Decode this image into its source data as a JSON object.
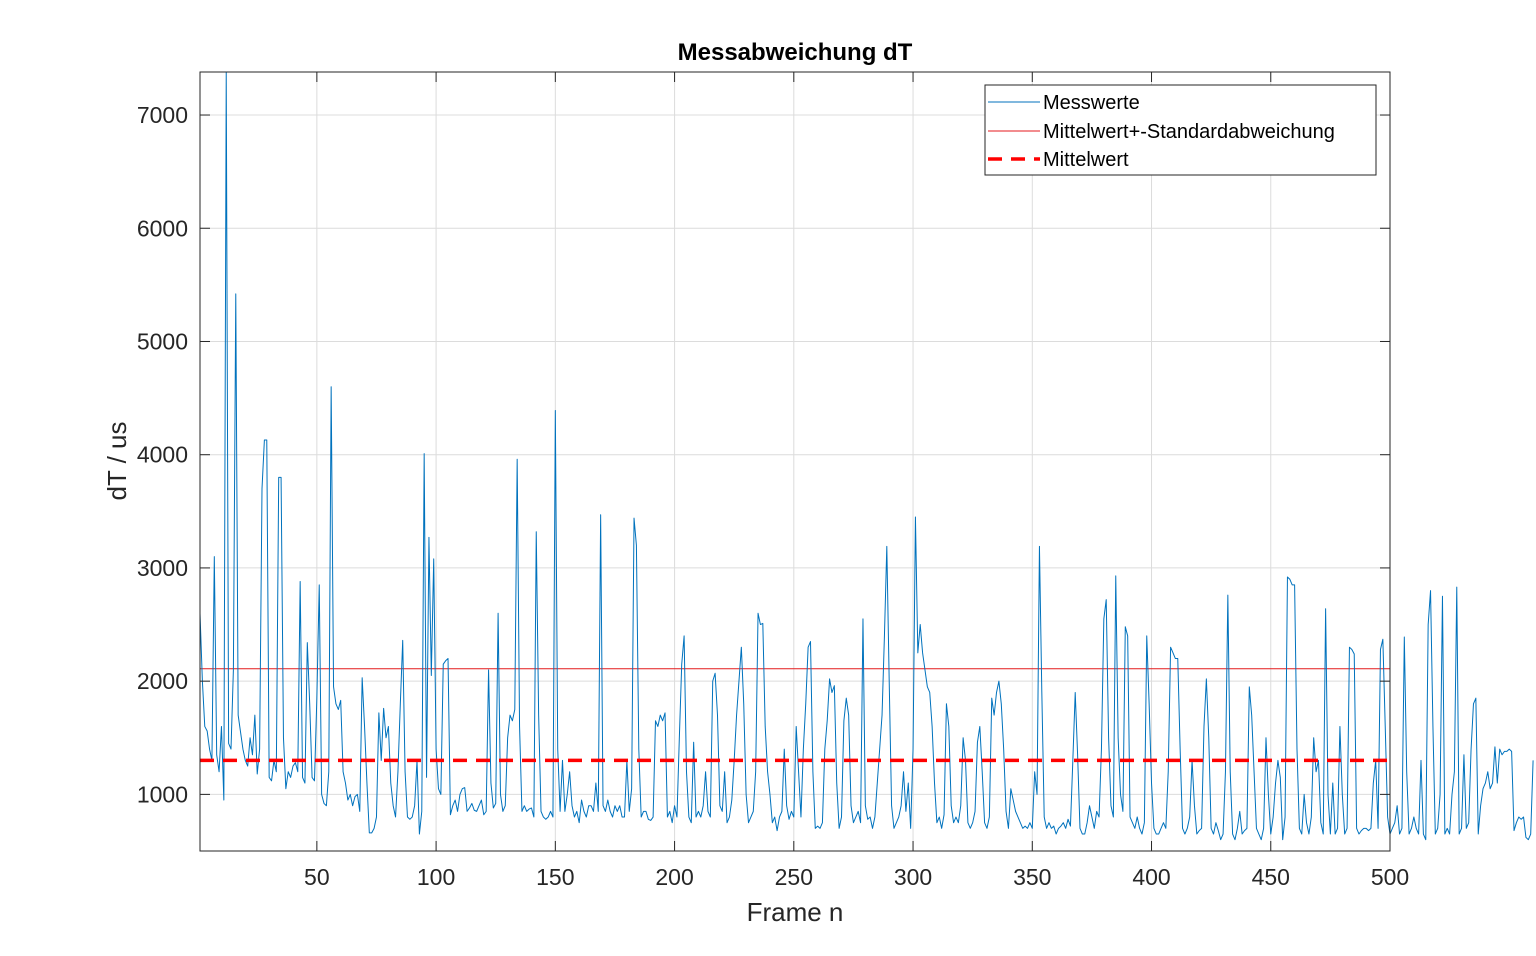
{
  "chart_data": {
    "type": "line",
    "title": "Messabweichung dT",
    "xlabel": "Frame n",
    "ylabel": "dT / us",
    "xlim": [
      1,
      500
    ],
    "ylim": [
      500,
      7380
    ],
    "xticks": [
      50,
      100,
      150,
      200,
      250,
      300,
      350,
      400,
      450,
      500
    ],
    "yticks": [
      1000,
      2000,
      3000,
      4000,
      5000,
      6000,
      7000
    ],
    "grid": true,
    "legend_position": "top-right",
    "colors": {
      "measured": "#0072BD",
      "band": "#E41A1C",
      "mean": "#FF0000",
      "grid": "#dcdcdc"
    },
    "legend": [
      {
        "key": "measured",
        "label": "Messwerte",
        "style": "solid-thin"
      },
      {
        "key": "band",
        "label": "Mittelwert+-Standardabweichung",
        "style": "solid-thin"
      },
      {
        "key": "mean",
        "label": "Mittelwert",
        "style": "dashed-thick"
      }
    ],
    "series": [
      {
        "name": "Messwerte",
        "x_start": 1,
        "x_step": 1,
        "values": [
          2600,
          2000,
          1600,
          1560,
          1400,
          1300,
          3100,
          1350,
          1200,
          1600,
          950,
          7380,
          1450,
          1400,
          2100,
          5420,
          1700,
          1550,
          1400,
          1300,
          1250,
          1500,
          1350,
          1700,
          1180,
          1400,
          3700,
          4130,
          4130,
          1150,
          1120,
          1300,
          1200,
          3800,
          3800,
          1500,
          1050,
          1200,
          1150,
          1250,
          1280,
          1200,
          2880,
          1150,
          1100,
          2340,
          1800,
          1150,
          1120,
          1850,
          2850,
          1000,
          920,
          900,
          1200,
          4600,
          1950,
          1800,
          1750,
          1830,
          1200,
          1100,
          950,
          1000,
          900,
          980,
          1000,
          850,
          2030,
          1600,
          1100,
          660,
          660,
          700,
          800,
          1720,
          1300,
          1760,
          1500,
          1600,
          1100,
          900,
          800,
          1200,
          1800,
          2360,
          1200,
          800,
          780,
          800,
          900,
          1300,
          650,
          850,
          4010,
          1150,
          3270,
          2050,
          3080,
          1400,
          1050,
          1000,
          2150,
          2180,
          2200,
          820,
          900,
          950,
          850,
          1000,
          1050,
          1060,
          850,
          880,
          920,
          860,
          850,
          900,
          950,
          820,
          850,
          2100,
          1100,
          880,
          920,
          2600,
          1000,
          850,
          900,
          1500,
          1700,
          1650,
          1750,
          3960,
          1600,
          850,
          900,
          850,
          870,
          880,
          800,
          3320,
          1700,
          850,
          800,
          780,
          800,
          850,
          800,
          4390,
          1400,
          850,
          1300,
          850,
          1000,
          1200,
          900,
          800,
          850,
          750,
          950,
          850,
          800,
          900,
          900,
          850,
          1100,
          850,
          3470,
          900,
          850,
          950,
          850,
          800,
          900,
          850,
          900,
          800,
          800,
          1300,
          850,
          1050,
          3440,
          3200,
          1400,
          800,
          850,
          850,
          780,
          770,
          800,
          1650,
          1600,
          1700,
          1650,
          1720,
          800,
          850,
          750,
          900,
          800,
          1500,
          2150,
          2400,
          1200,
          800,
          750,
          1460,
          800,
          850,
          800,
          900,
          1200,
          850,
          800,
          2000,
          2070,
          1700,
          900,
          850,
          1200,
          750,
          800,
          950,
          1300,
          1700,
          2000,
          2300,
          1800,
          1000,
          750,
          800,
          850,
          1200,
          2600,
          2500,
          2510,
          1600,
          1200,
          1000,
          750,
          800,
          680,
          800,
          850,
          1400,
          900,
          780,
          850,
          800,
          1600,
          1200,
          800,
          1400,
          1800,
          2300,
          2350,
          1200,
          700,
          720,
          700,
          750,
          1400,
          1650,
          2020,
          1900,
          1960,
          1100,
          700,
          800,
          1650,
          1850,
          1700,
          900,
          750,
          800,
          850,
          750,
          2550,
          900,
          780,
          800,
          700,
          800,
          1100,
          1400,
          1700,
          2400,
          3190,
          2000,
          900,
          700,
          750,
          800,
          900,
          1200,
          850,
          1100,
          700,
          1400,
          3450,
          2250,
          2500,
          2250,
          2100,
          1950,
          1900,
          1600,
          1100,
          750,
          800,
          700,
          820,
          1800,
          1600,
          900,
          750,
          800,
          750,
          900,
          1500,
          1300,
          750,
          700,
          750,
          850,
          1460,
          1600,
          1200,
          750,
          700,
          800,
          1850,
          1700,
          1900,
          2000,
          1800,
          1400,
          850,
          700,
          1050,
          950,
          850,
          800,
          750,
          700,
          720,
          700,
          750,
          700,
          1200,
          1000,
          3190,
          1900,
          800,
          700,
          750,
          700,
          720,
          650,
          700,
          720,
          750,
          700,
          780,
          720,
          1300,
          1900,
          1350,
          700,
          650,
          650,
          750,
          900,
          800,
          700,
          850,
          800,
          1400,
          2550,
          2720,
          1500,
          900,
          800,
          2930,
          1500,
          1000,
          850,
          2480,
          2400,
          800,
          750,
          700,
          800,
          700,
          650,
          750,
          2400,
          1800,
          1100,
          700,
          650,
          650,
          700,
          750,
          700,
          1200,
          2300,
          2250,
          2200,
          2200,
          1400,
          700,
          650,
          700,
          800,
          1300,
          900,
          650,
          680,
          700,
          1600,
          2020,
          1500,
          700,
          650,
          750,
          680,
          600,
          650,
          1200,
          2760,
          1200,
          650,
          600,
          700,
          850,
          650,
          680,
          700,
          1950,
          1700,
          1200,
          700,
          650,
          600,
          700,
          1500,
          1000,
          650,
          800,
          1100,
          1300,
          1150,
          600,
          800,
          2920,
          2900,
          2850,
          2850,
          1400,
          700,
          650,
          1000,
          750,
          650,
          800,
          1500,
          1200,
          1300,
          750,
          650,
          2640,
          1000,
          650,
          1100,
          650,
          700,
          1600,
          1000,
          650,
          700,
          2300,
          2280,
          2240,
          700,
          650,
          680,
          700,
          700,
          680,
          700,
          1100,
          1300,
          700,
          2280,
          2370,
          1600,
          800,
          650,
          700,
          750,
          900,
          650,
          700,
          2390,
          1200,
          650,
          700,
          800,
          700,
          650,
          1300,
          650,
          600,
          2500,
          2800,
          1600,
          650,
          700,
          1000,
          2750,
          650,
          700,
          650,
          1000,
          1200,
          2830,
          650,
          700,
          1350,
          700,
          750,
          1400,
          1800,
          1850,
          650,
          900,
          1050,
          1100,
          1200,
          1050,
          1100,
          1420,
          1100,
          1400,
          1350,
          1380,
          1380,
          1400,
          1380,
          680,
          750,
          800,
          780,
          800,
          620,
          600,
          650,
          1300
        ]
      }
    ],
    "reference_lines": [
      {
        "label": "Mittelwert",
        "y": 1300
      },
      {
        "label": "Mittelwert+Standardabweichung",
        "y": 2110
      },
      {
        "label": "Mittelwert-Standardabweichung",
        "y": 490
      }
    ]
  }
}
